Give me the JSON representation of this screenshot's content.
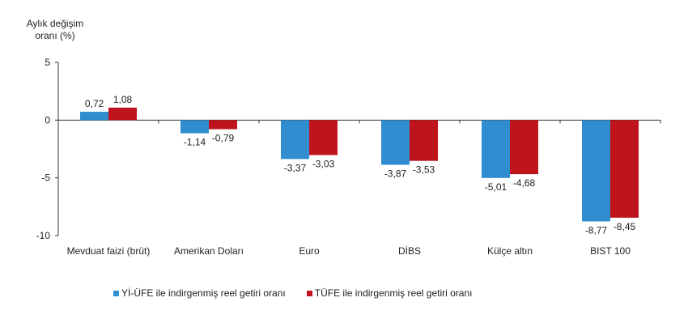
{
  "chart_data": {
    "type": "bar",
    "ylabel_lines": [
      "Aylık değişim",
      "oranı (%)"
    ],
    "categories": [
      "Mevduat faizi (brüt)",
      "Amerikan Doları",
      "Euro",
      "DİBS",
      "Külçe altın",
      "BIST 100"
    ],
    "series": [
      {
        "name": "Yİ-ÜFE ile indirgenmiş reel getiri oranı",
        "color": "#2f8dd0",
        "values": [
          0.72,
          -1.14,
          -3.37,
          -3.87,
          -5.01,
          -8.77
        ],
        "labels": [
          "0,72",
          "-1,14",
          "-3,37",
          "-3,87",
          "-5,01",
          "-8,77"
        ]
      },
      {
        "name": "TÜFE ile indirgenmiş reel getiri oranı",
        "color": "#c0141c",
        "values": [
          1.08,
          -0.79,
          -3.03,
          -3.53,
          -4.68,
          -8.45
        ],
        "labels": [
          "1,08",
          "-0,79",
          "-3,03",
          "-3,53",
          "-4,68",
          "-8,45"
        ]
      }
    ],
    "ylim": [
      -10,
      5
    ],
    "yticks": [
      5,
      0,
      -5,
      -10
    ],
    "grid": false,
    "legend_position": "bottom"
  }
}
